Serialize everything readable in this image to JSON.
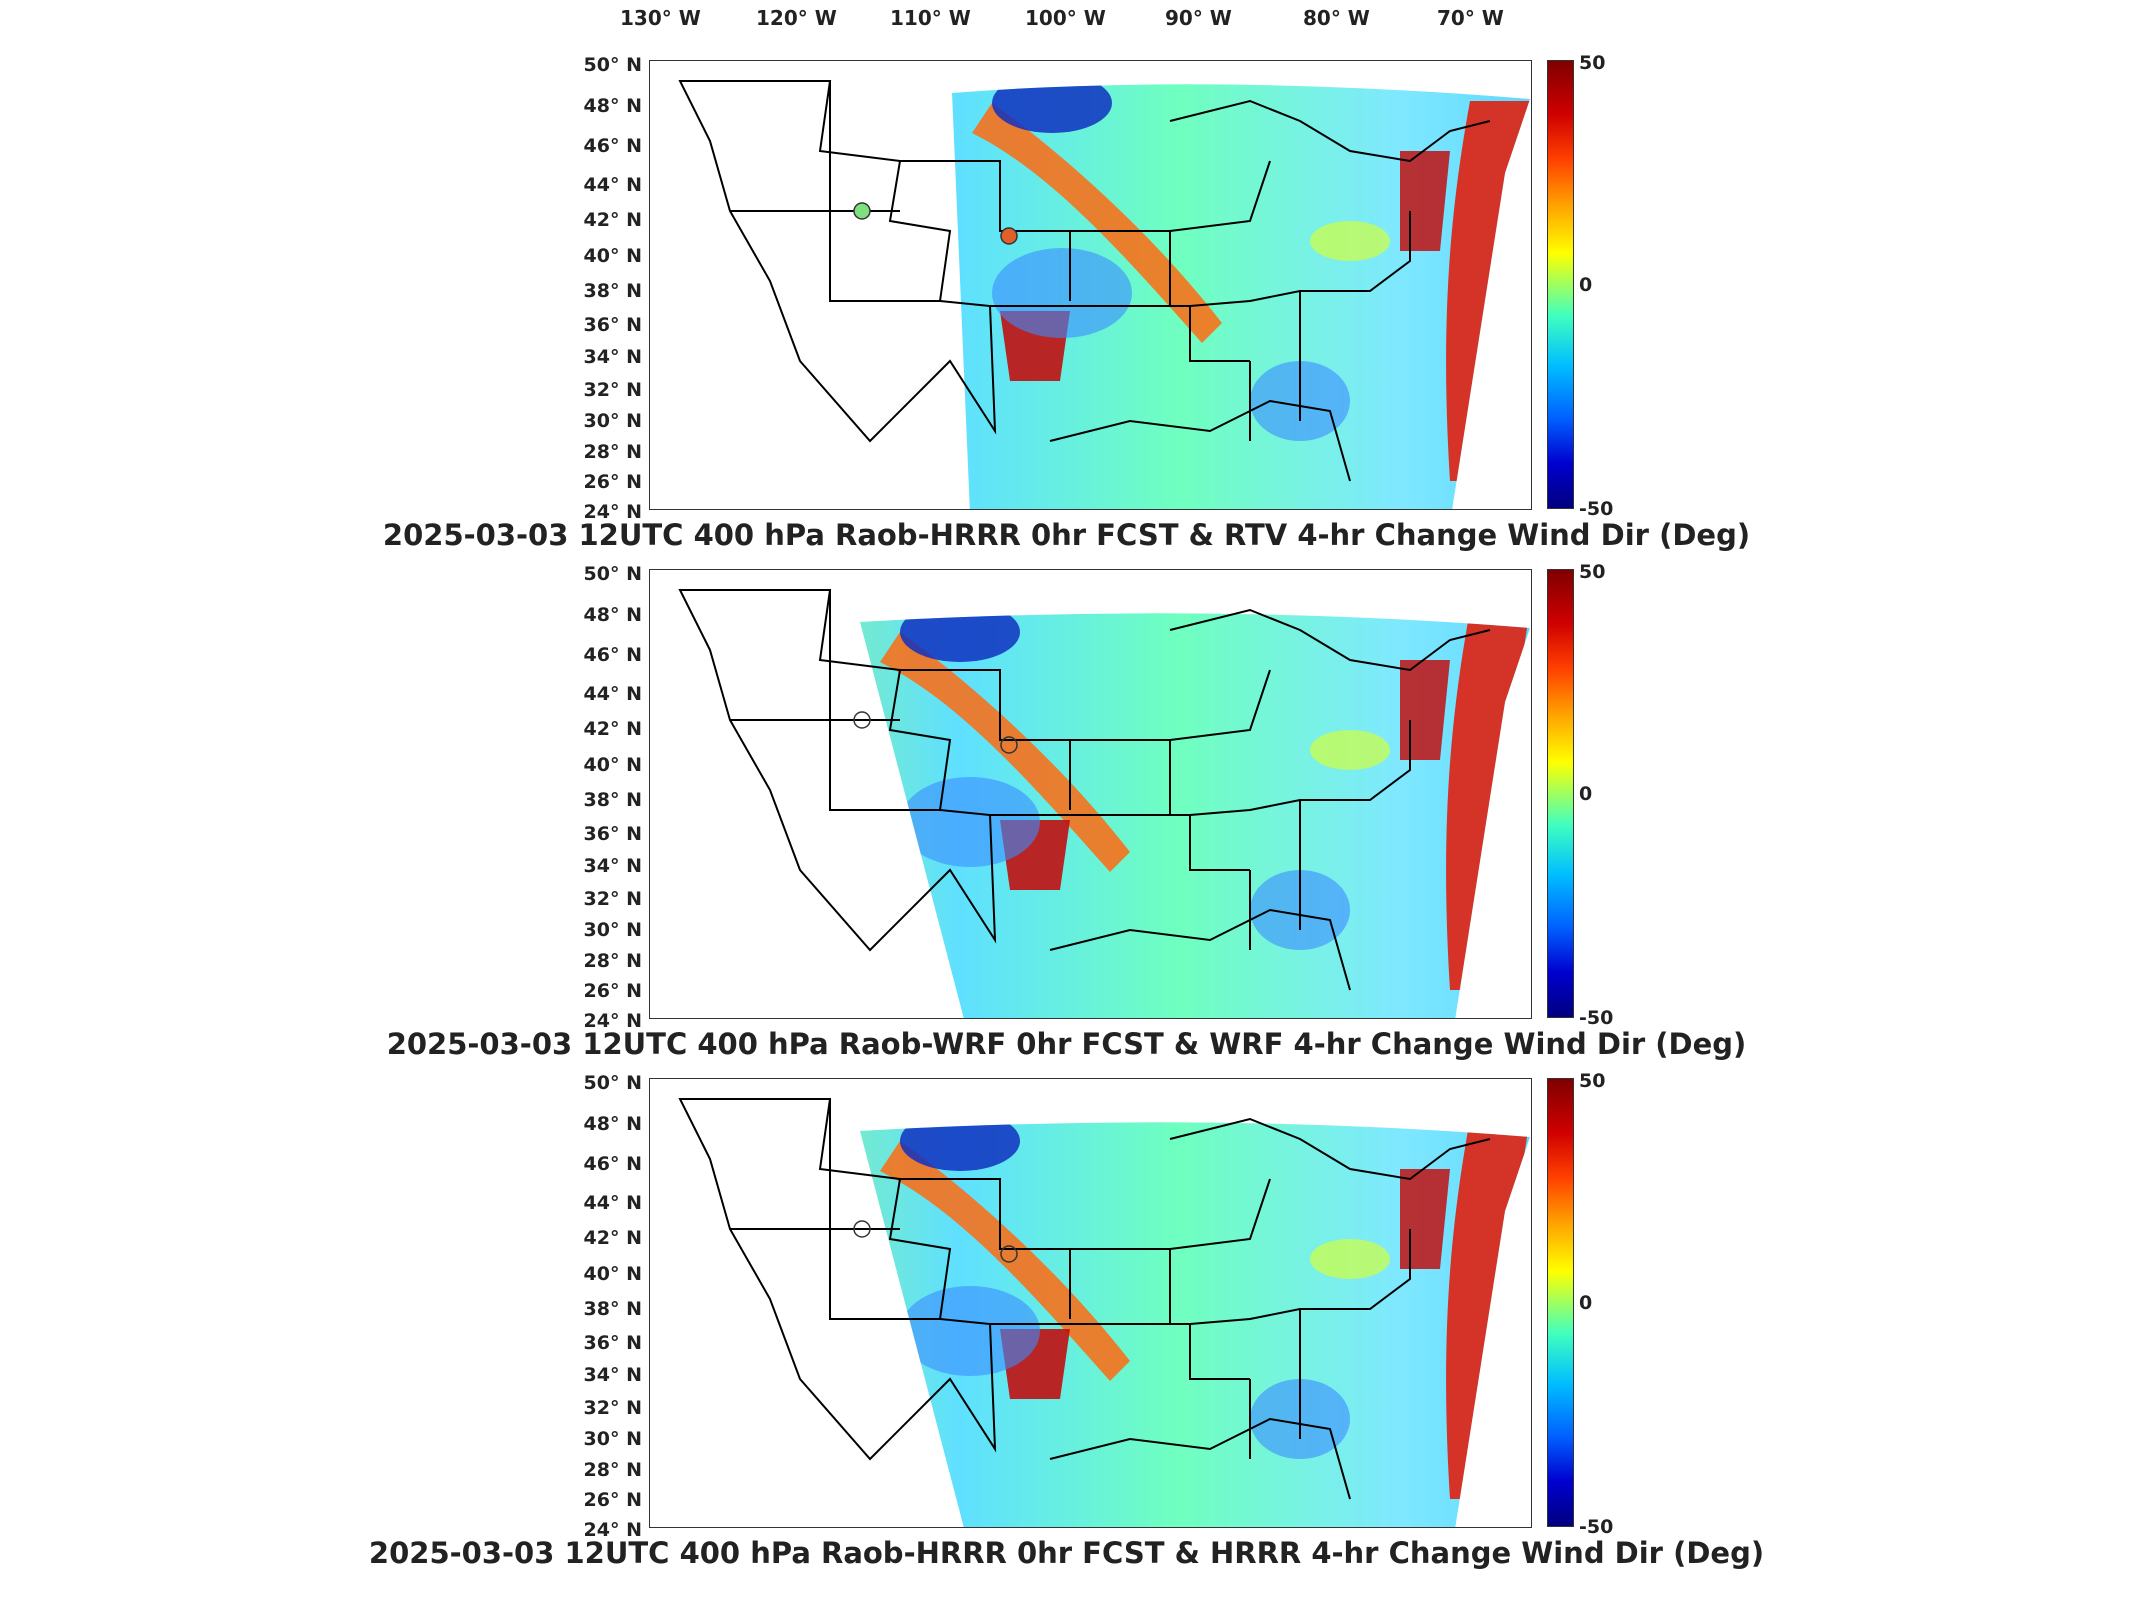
{
  "lon_labels": [
    "130° W",
    "120° W",
    "110° W",
    "100° W",
    "90° W",
    "80° W",
    "70° W"
  ],
  "lat_labels": [
    "50° N",
    "48° N",
    "46° N",
    "44° N",
    "42° N",
    "40° N",
    "38° N",
    "36° N",
    "34° N",
    "32° N",
    "30° N",
    "28° N",
    "26° N",
    "24° N"
  ],
  "colorbar": {
    "max": "50",
    "mid": "0",
    "min": "-50"
  },
  "panels": [
    {
      "title": "2025-03-03 12UTC 400 hPa Raob-HRRR 0hr FCST & RTV 4-hr Change Wind Dir (Deg)",
      "markers": [
        {
          "color": "#7fe07f"
        },
        {
          "color": "#e0602a"
        }
      ]
    },
    {
      "title": "2025-03-03 12UTC 400 hPa Raob-WRF 0hr FCST & WRF 4-hr Change Wind Dir (Deg)",
      "markers": [
        {
          "color": "none"
        },
        {
          "color": "none"
        }
      ]
    },
    {
      "title": "2025-03-03 12UTC 400 hPa Raob-HRRR 0hr FCST & HRRR 4-hr Change Wind Dir (Deg)",
      "markers": [
        {
          "color": "none"
        },
        {
          "color": "none"
        }
      ]
    }
  ],
  "colors": {
    "field_base": "#6fe0a0",
    "hot": "#d01010",
    "cold": "#1030c0"
  }
}
